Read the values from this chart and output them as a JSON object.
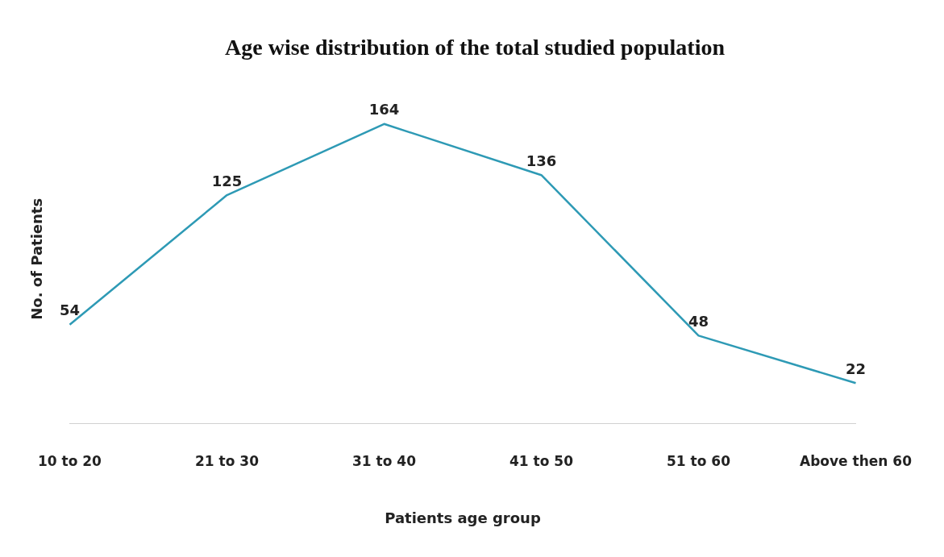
{
  "chart_data": {
    "type": "line",
    "title": "Age wise distribution of the total studied population",
    "xlabel": "Patients age group",
    "ylabel": "No. of Patients",
    "categories": [
      "10 to 20",
      "21 to 30",
      "31 to 40",
      "41 to 50",
      "51 to 60",
      "Above then 60"
    ],
    "series": [
      {
        "color": "#2e9ab5",
        "values": [
          54,
          125,
          164,
          136,
          48,
          22
        ]
      }
    ],
    "tick_labels": "x",
    "data_labels": true,
    "grid": false,
    "legend": false,
    "line_style": "solid"
  }
}
